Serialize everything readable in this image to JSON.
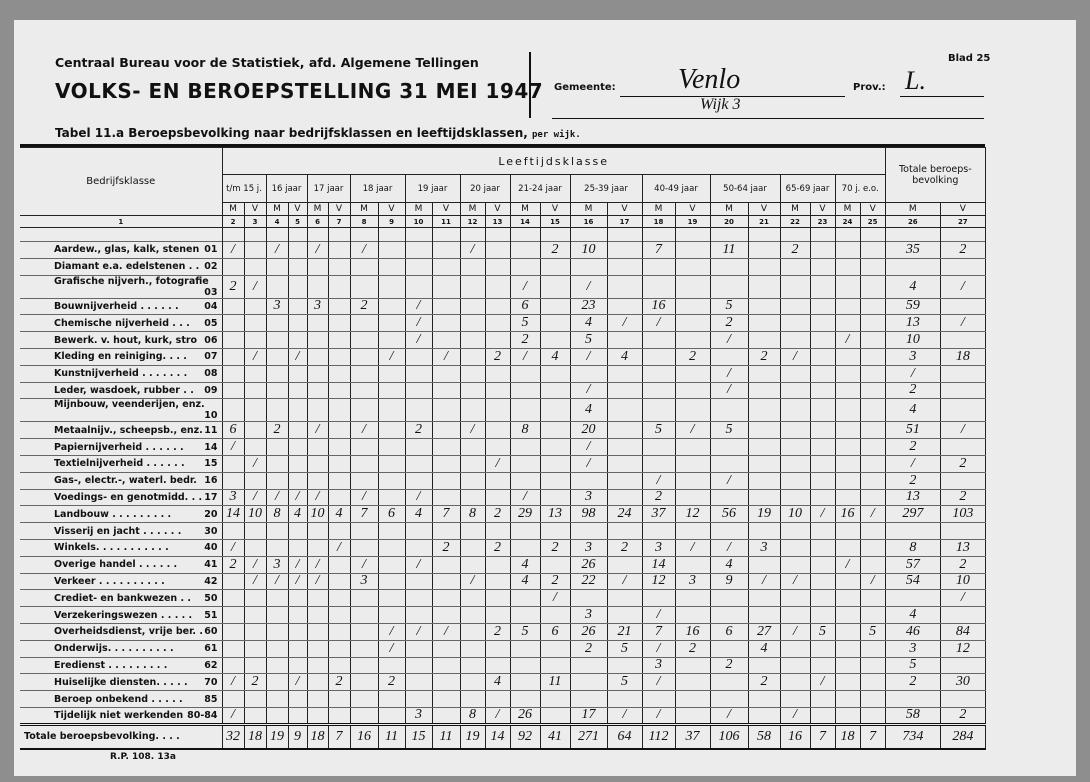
{
  "header": {
    "institution": "Centraal Bureau voor de Statistiek, afd. Algemene Tellingen",
    "title": "VOLKS- EN BEROEPSTELLING 31 MEI 1947",
    "sheet": "Blad 25",
    "municipality_label": "Gemeente:",
    "municipality": "Venlo",
    "district": "Wijk 3",
    "province_label": "Prov.:",
    "province": "L."
  },
  "table": {
    "caption": "Tabel 11.a Beroepsbevolking naar bedrijfsklassen en leeftijdsklassen,",
    "caption_suffix": "per wijk.",
    "row_header": "Bedrijfsklasse",
    "age_header": "Leeftijdsklasse",
    "age_groups": [
      "t/m 15 j.",
      "16 jaar",
      "17 jaar",
      "18 jaar",
      "19 jaar",
      "20 jaar",
      "21-24 jaar",
      "25-39 jaar",
      "40-49 jaar",
      "50-64 jaar",
      "65-69 jaar",
      "70 j. e.o."
    ],
    "total_header": "Totale beroeps- bevolking",
    "sex_labels": [
      "M",
      "V"
    ],
    "column_numbers": [
      1,
      2,
      3,
      4,
      5,
      6,
      7,
      8,
      9,
      10,
      11,
      12,
      13,
      14,
      15,
      16,
      17,
      18,
      19,
      20,
      21,
      22,
      23,
      24,
      25,
      26,
      27
    ],
    "rows": [
      {
        "name": "Aardew., glas, kalk, stenen",
        "code": "01",
        "cells": [
          "/",
          null,
          "/",
          null,
          "/",
          null,
          "/",
          null,
          null,
          null,
          "/",
          null,
          null,
          "2",
          "10",
          null,
          "7",
          null,
          "11",
          null,
          "2",
          null,
          null,
          null,
          "35",
          "2"
        ]
      },
      {
        "name": "Diamant e.a. edelstenen . .",
        "code": "02",
        "cells": [
          null,
          null,
          null,
          null,
          null,
          null,
          null,
          null,
          null,
          null,
          null,
          null,
          null,
          null,
          null,
          null,
          null,
          null,
          null,
          null,
          null,
          null,
          null,
          null,
          null,
          null
        ]
      },
      {
        "name": "Grafische nijverh., fotografie",
        "code": "03",
        "cells": [
          "2",
          "/",
          null,
          null,
          null,
          null,
          null,
          null,
          null,
          null,
          null,
          null,
          "/",
          null,
          "/",
          null,
          null,
          null,
          null,
          null,
          null,
          null,
          null,
          null,
          "4",
          "/"
        ]
      },
      {
        "name": "Bouwnijverheid . . . . . .",
        "code": "04",
        "cells": [
          null,
          null,
          "3",
          null,
          "3",
          null,
          "2",
          null,
          "/",
          null,
          null,
          null,
          "6",
          null,
          "23",
          null,
          "16",
          null,
          "5",
          null,
          null,
          null,
          null,
          null,
          "59",
          null
        ]
      },
      {
        "name": "Chemische nijverheid . . .",
        "code": "05",
        "cells": [
          null,
          null,
          null,
          null,
          null,
          null,
          null,
          null,
          "/",
          null,
          null,
          null,
          "5",
          null,
          "4",
          "/",
          "/",
          null,
          "2",
          null,
          null,
          null,
          null,
          null,
          "13",
          "/"
        ]
      },
      {
        "name": "Bewerk. v. hout, kurk, stro",
        "code": "06",
        "cells": [
          null,
          null,
          null,
          null,
          null,
          null,
          null,
          null,
          "/",
          null,
          null,
          null,
          "2",
          null,
          "5",
          null,
          null,
          null,
          "/",
          null,
          null,
          null,
          "/",
          null,
          "10",
          null
        ]
      },
      {
        "name": "Kleding en reiniging. . . .",
        "code": "07",
        "cells": [
          null,
          "/",
          null,
          "/",
          null,
          null,
          null,
          "/",
          null,
          "/",
          null,
          "2",
          "/",
          "4",
          "/",
          "4",
          null,
          "2",
          null,
          "2",
          "/",
          null,
          null,
          null,
          "3",
          "18"
        ]
      },
      {
        "name": "Kunstnijverheid . . . . . . .",
        "code": "08",
        "cells": [
          null,
          null,
          null,
          null,
          null,
          null,
          null,
          null,
          null,
          null,
          null,
          null,
          null,
          null,
          null,
          null,
          null,
          null,
          "/",
          null,
          null,
          null,
          null,
          null,
          "/",
          null
        ]
      },
      {
        "name": "Leder, wasdoek, rubber . .",
        "code": "09",
        "cells": [
          null,
          null,
          null,
          null,
          null,
          null,
          null,
          null,
          null,
          null,
          null,
          null,
          null,
          null,
          "/",
          null,
          null,
          null,
          "/",
          null,
          null,
          null,
          null,
          null,
          "2",
          null
        ]
      },
      {
        "name": "Mijnbouw, veenderijen, enz.",
        "code": "10",
        "cells": [
          null,
          null,
          null,
          null,
          null,
          null,
          null,
          null,
          null,
          null,
          null,
          null,
          null,
          null,
          "4",
          null,
          null,
          null,
          null,
          null,
          null,
          null,
          null,
          null,
          "4",
          null
        ]
      },
      {
        "name": "Metaalnijv., scheepsb., enz.",
        "code": "11",
        "cells": [
          "6",
          null,
          "2",
          null,
          "/",
          null,
          "/",
          null,
          "2",
          null,
          "/",
          null,
          "8",
          null,
          "20",
          null,
          "5",
          "/",
          "5",
          null,
          null,
          null,
          null,
          null,
          "51",
          "/"
        ]
      },
      {
        "name": "Papiernijverheid . . . . . .",
        "code": "14",
        "cells": [
          "/",
          null,
          null,
          null,
          null,
          null,
          null,
          null,
          null,
          null,
          null,
          null,
          null,
          null,
          "/",
          null,
          null,
          null,
          null,
          null,
          null,
          null,
          null,
          null,
          "2",
          null
        ]
      },
      {
        "name": "Textielnijverheid . . . . . .",
        "code": "15",
        "cells": [
          null,
          "/",
          null,
          null,
          null,
          null,
          null,
          null,
          null,
          null,
          null,
          "/",
          null,
          null,
          "/",
          null,
          null,
          null,
          null,
          null,
          null,
          null,
          null,
          null,
          "/",
          "2"
        ]
      },
      {
        "name": "Gas-, electr.-, waterl. bedr.",
        "code": "16",
        "cells": [
          null,
          null,
          null,
          null,
          null,
          null,
          null,
          null,
          null,
          null,
          null,
          null,
          null,
          null,
          null,
          null,
          "/",
          null,
          "/",
          null,
          null,
          null,
          null,
          null,
          "2",
          null
        ]
      },
      {
        "name": "Voedings- en genotmidd. . .",
        "code": "17",
        "cells": [
          "3",
          "/",
          "/",
          "/",
          "/",
          null,
          "/",
          null,
          "/",
          null,
          null,
          null,
          "/",
          null,
          "3",
          null,
          "2",
          null,
          null,
          null,
          null,
          null,
          null,
          null,
          "13",
          "2"
        ]
      },
      {
        "name": "Landbouw . . . . . . . . .",
        "code": "20",
        "cells": [
          "14",
          "10",
          "8",
          "4",
          "10",
          "4",
          "7",
          "6",
          "4",
          "7",
          "8",
          "2",
          "29",
          "13",
          "98",
          "24",
          "37",
          "12",
          "56",
          "19",
          "10",
          "/",
          "16",
          "/",
          "297",
          "103"
        ]
      },
      {
        "name": "Visserij en jacht . . . . . .",
        "code": "30",
        "cells": [
          null,
          null,
          null,
          null,
          null,
          null,
          null,
          null,
          null,
          null,
          null,
          null,
          null,
          null,
          null,
          null,
          null,
          null,
          null,
          null,
          null,
          null,
          null,
          null,
          null,
          null
        ]
      },
      {
        "name": "Winkels. . . . . . . . . . .",
        "code": "40",
        "cells": [
          "/",
          null,
          null,
          null,
          null,
          "/",
          null,
          null,
          null,
          "2",
          null,
          "2",
          null,
          "2",
          "3",
          "2",
          "3",
          "/",
          "/",
          "3",
          null,
          null,
          null,
          null,
          "8",
          "13"
        ]
      },
      {
        "name": "Overige handel . . . . . .",
        "code": "41",
        "cells": [
          "2",
          "/",
          "3",
          "/",
          "/",
          null,
          "/",
          null,
          "/",
          null,
          null,
          null,
          "4",
          null,
          "26",
          null,
          "14",
          null,
          "4",
          null,
          null,
          null,
          "/",
          null,
          "57",
          "2"
        ]
      },
      {
        "name": "Verkeer . . . . . . . . . .",
        "code": "42",
        "cells": [
          null,
          "/",
          "/",
          "/",
          "/",
          null,
          "3",
          null,
          null,
          null,
          "/",
          null,
          "4",
          "2",
          "22",
          "/",
          "12",
          "3",
          "9",
          "/",
          "/",
          null,
          null,
          "/",
          "54",
          "10"
        ]
      },
      {
        "name": "Crediet- en bankwezen . .",
        "code": "50",
        "cells": [
          null,
          null,
          null,
          null,
          null,
          null,
          null,
          null,
          null,
          null,
          null,
          null,
          null,
          "/",
          null,
          null,
          null,
          null,
          null,
          null,
          null,
          null,
          null,
          null,
          null,
          "/"
        ]
      },
      {
        "name": "Verzekeringswezen . . . . .",
        "code": "51",
        "cells": [
          null,
          null,
          null,
          null,
          null,
          null,
          null,
          null,
          null,
          null,
          null,
          null,
          null,
          null,
          "3",
          null,
          "/",
          null,
          null,
          null,
          null,
          null,
          null,
          null,
          "4",
          null
        ]
      },
      {
        "name": "Overheidsdienst, vrije ber. .",
        "code": "60",
        "cells": [
          null,
          null,
          null,
          null,
          null,
          null,
          null,
          "/",
          "/",
          "/",
          null,
          "2",
          "5",
          "6",
          "26",
          "21",
          "7",
          "16",
          "6",
          "27",
          "/",
          "5",
          null,
          "5",
          "46",
          "84"
        ]
      },
      {
        "name": "Onderwijs. . . . . . . . . .",
        "code": "61",
        "cells": [
          null,
          null,
          null,
          null,
          null,
          null,
          null,
          "/",
          null,
          null,
          null,
          null,
          null,
          null,
          "2",
          "5",
          "/",
          "2",
          null,
          "4",
          null,
          null,
          null,
          null,
          "3",
          "12"
        ]
      },
      {
        "name": "Eredienst . . . . . . . . .",
        "code": "62",
        "cells": [
          null,
          null,
          null,
          null,
          null,
          null,
          null,
          null,
          null,
          null,
          null,
          null,
          null,
          null,
          null,
          null,
          "3",
          null,
          "2",
          null,
          null,
          null,
          null,
          null,
          "5",
          null
        ]
      },
      {
        "name": "Huiselijke diensten. . . . .",
        "code": "70",
        "cells": [
          "/",
          "2",
          null,
          "/",
          null,
          "2",
          null,
          "2",
          null,
          null,
          null,
          "4",
          null,
          "11",
          null,
          "5",
          "/",
          null,
          null,
          "2",
          null,
          "/",
          null,
          null,
          "2",
          "30"
        ]
      },
      {
        "name": "Beroep onbekend . . . . .",
        "code": "85",
        "cells": [
          null,
          null,
          null,
          null,
          null,
          null,
          null,
          null,
          null,
          null,
          null,
          null,
          null,
          null,
          null,
          null,
          null,
          null,
          null,
          null,
          null,
          null,
          null,
          null,
          null,
          null
        ]
      },
      {
        "name": "Tijdelijk niet werkenden",
        "code": "80-84",
        "cells": [
          "/",
          null,
          null,
          null,
          null,
          null,
          null,
          null,
          "3",
          null,
          "8",
          "/",
          "26",
          null,
          "17",
          "/",
          "/",
          null,
          "/",
          null,
          "/",
          null,
          null,
          null,
          "58",
          "2"
        ]
      }
    ],
    "total_row": {
      "name": "Totale beroepsbevolking. . . .",
      "cells": [
        "32",
        "18",
        "19",
        "9",
        "18",
        "7",
        "16",
        "11",
        "15",
        "11",
        "19",
        "14",
        "92",
        "41",
        "271",
        "64",
        "112",
        "37",
        "106",
        "58",
        "16",
        "7",
        "18",
        "7",
        "734",
        "284"
      ]
    }
  },
  "footer": "R.P. 108. 13a"
}
